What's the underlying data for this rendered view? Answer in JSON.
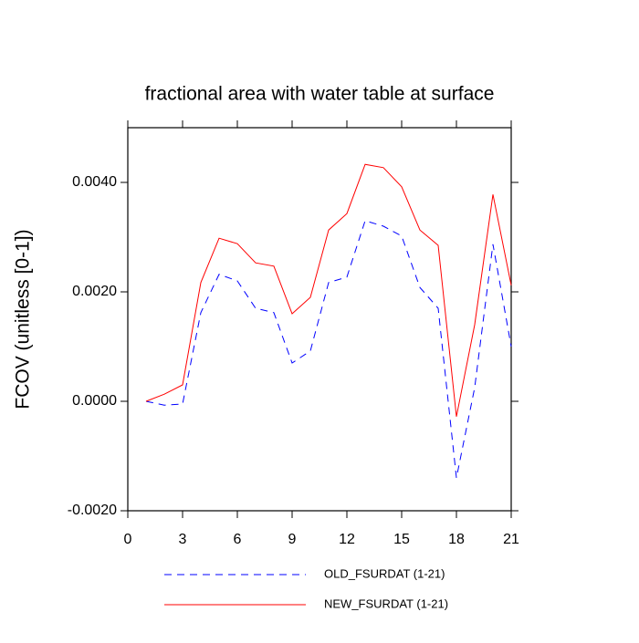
{
  "chart_data": {
    "type": "line",
    "title": "fractional area with water table at surface",
    "y_label": "FCOV  (unitless [0-1])",
    "x": [
      1,
      2,
      3,
      4,
      5,
      6,
      7,
      8,
      9,
      10,
      11,
      12,
      13,
      14,
      15,
      16,
      17,
      18,
      19,
      20,
      21
    ],
    "series": [
      {
        "name": "OLD_FSURDAT (1-21)",
        "color": "#0000ff",
        "dash": true,
        "values": [
          0,
          -7e-05,
          -5e-05,
          0.00162,
          0.00232,
          0.0022,
          0.0017,
          0.00162,
          0.0007,
          0.00092,
          0.00217,
          0.00227,
          0.0033,
          0.0032,
          0.00302,
          0.00208,
          0.0017,
          -0.0014,
          0.00025,
          0.00287,
          0.001
        ]
      },
      {
        "name": "NEW_FSURDAT (1-21)",
        "color": "#ff0000",
        "dash": false,
        "values": [
          0,
          0.00013,
          0.0003,
          0.00217,
          0.00298,
          0.00288,
          0.00253,
          0.00247,
          0.0016,
          0.0019,
          0.00313,
          0.00343,
          0.00433,
          0.00427,
          0.00392,
          0.00313,
          0.00285,
          -0.00028,
          0.0014,
          0.00378,
          0.00212
        ]
      }
    ],
    "xlim": [
      0,
      21
    ],
    "xticks": [
      0,
      3,
      6,
      9,
      12,
      15,
      18,
      21
    ],
    "ylim": [
      -0.002,
      0.005
    ],
    "yticks": [
      {
        "value": -0.002,
        "label": "-0.0020"
      },
      {
        "value": 0,
        "label": "0.0000"
      },
      {
        "value": 0.002,
        "label": "0.0020"
      },
      {
        "value": 0.004,
        "label": "0.0040"
      }
    ]
  }
}
